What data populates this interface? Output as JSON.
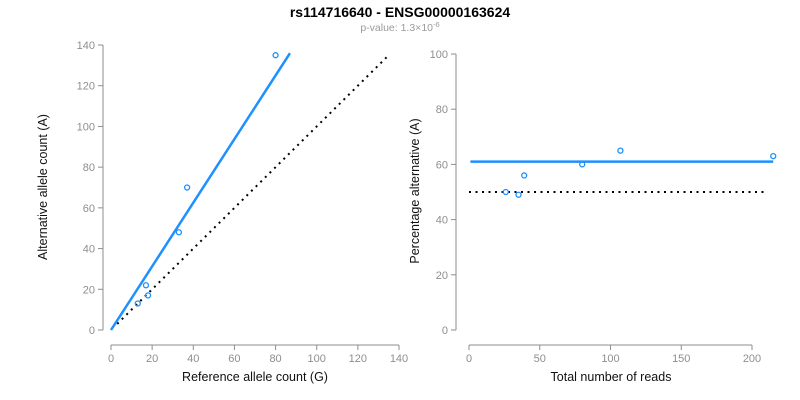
{
  "header": {
    "title": "rs114716640 - ENSG00000163624",
    "subtitle_text": "p-value: 1.3×10",
    "subtitle_exponent": "-6"
  },
  "colors": {
    "accent_blue": "#1E90FF",
    "axis_gray": "#8E8E8E",
    "tick_label_gray": "#8E8E8E",
    "subtitle_gray": "#9A9A9A",
    "reference_line_black": "#000000",
    "title_black": "#000000",
    "background": "#FFFFFF"
  },
  "chart_data": [
    {
      "id": "allele-counts",
      "type": "scatter",
      "xlabel": "Reference allele count (G)",
      "ylabel": "Alternative allele count (A)",
      "xlim": [
        0,
        140
      ],
      "ylim": [
        0,
        140
      ],
      "xticks": [
        0,
        20,
        40,
        60,
        80,
        100,
        120,
        140
      ],
      "yticks": [
        0,
        20,
        40,
        60,
        80,
        100,
        120,
        140
      ],
      "grid": false,
      "legend": null,
      "points": [
        [
          13,
          13
        ],
        [
          18,
          17
        ],
        [
          17,
          22
        ],
        [
          33,
          48
        ],
        [
          37,
          70
        ],
        [
          80,
          135
        ]
      ],
      "fit_line": {
        "x1": 0,
        "y1": 0,
        "x2": 87,
        "y2": 136,
        "style": "solid"
      },
      "identity_line": {
        "x1": 3,
        "y1": 3,
        "x2": 134,
        "y2": 134,
        "style": "dotted"
      }
    },
    {
      "id": "percentage-alternative",
      "type": "scatter",
      "xlabel": "Total number of reads",
      "ylabel": "Percentage alternative (A)",
      "xlim": [
        0,
        220
      ],
      "ylim": [
        0,
        100
      ],
      "xticks": [
        0,
        50,
        100,
        150,
        200
      ],
      "yticks": [
        0,
        20,
        40,
        60,
        80,
        100
      ],
      "grid": false,
      "legend": null,
      "points": [
        [
          26,
          50
        ],
        [
          35,
          49
        ],
        [
          39,
          56
        ],
        [
          80,
          60
        ],
        [
          107,
          65
        ],
        [
          215,
          63
        ]
      ],
      "fit_line": {
        "x1": 1,
        "y1": 61,
        "x2": 215,
        "y2": 61,
        "style": "solid"
      },
      "identity_line": {
        "x1": 0,
        "y1": 50,
        "x2": 210,
        "y2": 50,
        "style": "dotted"
      }
    }
  ]
}
